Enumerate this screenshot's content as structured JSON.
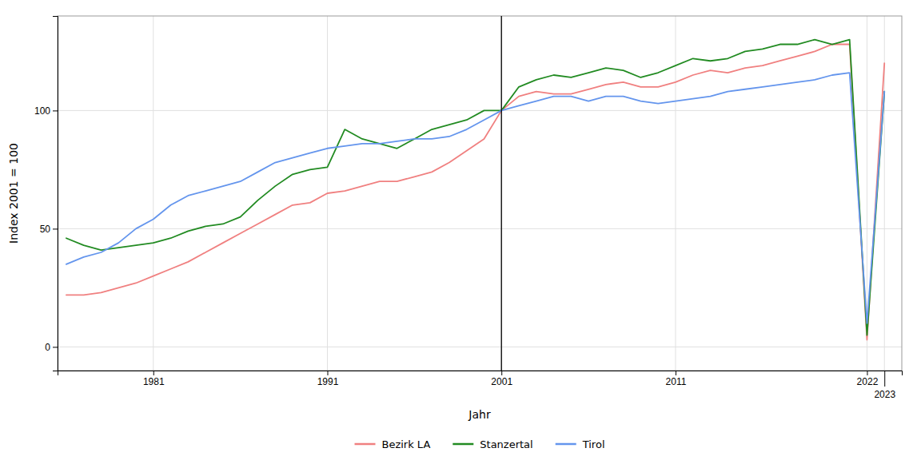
{
  "chart_data": {
    "type": "line",
    "xlabel": "Jahr",
    "ylabel": "Index 2001 = 100",
    "x": [
      1976,
      1977,
      1978,
      1979,
      1980,
      1981,
      1982,
      1983,
      1984,
      1985,
      1986,
      1987,
      1988,
      1989,
      1990,
      1991,
      1992,
      1993,
      1994,
      1995,
      1996,
      1997,
      1998,
      1999,
      2000,
      2001,
      2002,
      2003,
      2004,
      2005,
      2006,
      2007,
      2008,
      2009,
      2010,
      2011,
      2012,
      2013,
      2014,
      2015,
      2016,
      2017,
      2018,
      2019,
      2020,
      2021,
      2022,
      2023
    ],
    "series": [
      {
        "name": "Bezirk LA",
        "color": "#F08080",
        "values": [
          22,
          22,
          23,
          25,
          27,
          30,
          33,
          36,
          40,
          44,
          48,
          52,
          56,
          60,
          61,
          65,
          66,
          68,
          70,
          70,
          72,
          74,
          78,
          83,
          88,
          100,
          106,
          108,
          107,
          107,
          109,
          111,
          112,
          110,
          110,
          112,
          115,
          117,
          116,
          118,
          119,
          121,
          123,
          125,
          128,
          128,
          3,
          120
        ]
      },
      {
        "name": "Stanzertal",
        "color": "#228B22",
        "values": [
          46,
          43,
          41,
          42,
          43,
          44,
          46,
          49,
          51,
          52,
          55,
          62,
          68,
          73,
          75,
          76,
          92,
          88,
          86,
          84,
          88,
          92,
          94,
          96,
          100,
          100,
          110,
          113,
          115,
          114,
          116,
          118,
          117,
          114,
          116,
          119,
          122,
          121,
          122,
          125,
          126,
          128,
          128,
          130,
          128,
          130,
          5,
          108
        ]
      },
      {
        "name": "Tirol",
        "color": "#6495ED",
        "values": [
          35,
          38,
          40,
          44,
          50,
          54,
          60,
          64,
          66,
          68,
          70,
          74,
          78,
          80,
          82,
          84,
          85,
          86,
          86,
          87,
          88,
          88,
          89,
          92,
          96,
          100,
          102,
          104,
          106,
          106,
          104,
          106,
          106,
          104,
          103,
          104,
          105,
          106,
          108,
          109,
          110,
          111,
          112,
          113,
          115,
          116,
          10,
          108
        ]
      }
    ],
    "vline": 2001,
    "xlim": [
      1975.5,
      2024
    ],
    "ylim": [
      -10,
      140
    ],
    "xticks": [
      1981,
      1991,
      2001,
      2011,
      2022,
      2023
    ],
    "yticks": [
      0,
      50,
      100
    ],
    "grid": true,
    "legend": "bottom"
  }
}
